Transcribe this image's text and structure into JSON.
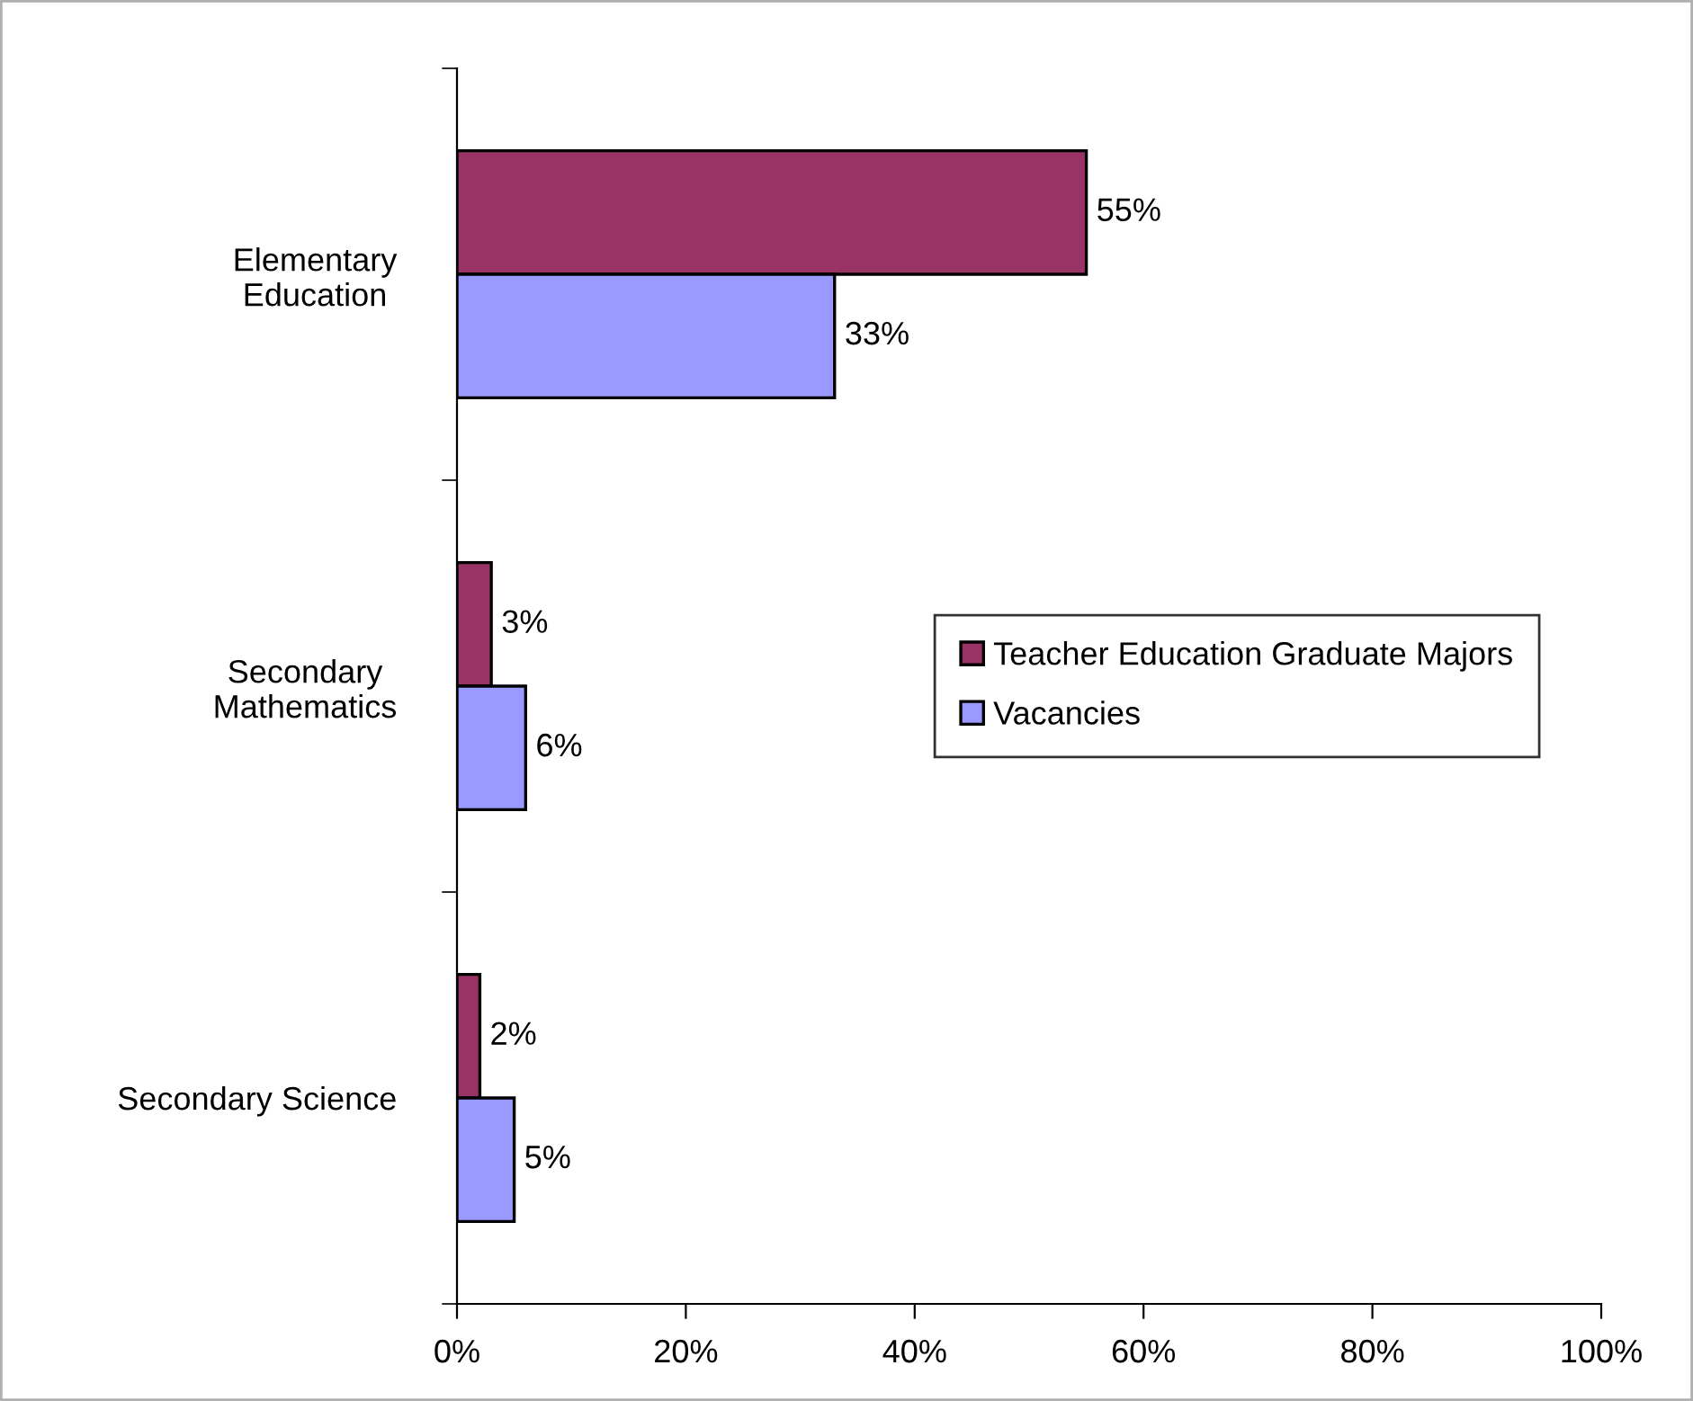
{
  "chart_data": {
    "type": "bar",
    "orientation": "horizontal",
    "categories": [
      "Elementary\nEducation",
      "Secondary\nMathematics",
      "Secondary Science"
    ],
    "series": [
      {
        "name": "Teacher Education Graduate Majors",
        "color": "#993366",
        "values": [
          55,
          3,
          2
        ],
        "value_labels": [
          "55%",
          "3%",
          "2%"
        ]
      },
      {
        "name": "Vacancies",
        "color": "#9999ff",
        "values": [
          33,
          6,
          5
        ],
        "value_labels": [
          "33%",
          "6%",
          "5%"
        ]
      }
    ],
    "xlim": [
      0,
      100
    ],
    "xticks": [
      {
        "value": 0,
        "label": "0%"
      },
      {
        "value": 20,
        "label": "20%"
      },
      {
        "value": 40,
        "label": "40%"
      },
      {
        "value": 60,
        "label": "60%"
      },
      {
        "value": 80,
        "label": "80%"
      },
      {
        "value": 100,
        "label": "100%"
      }
    ],
    "grid": false,
    "legend": "right"
  }
}
